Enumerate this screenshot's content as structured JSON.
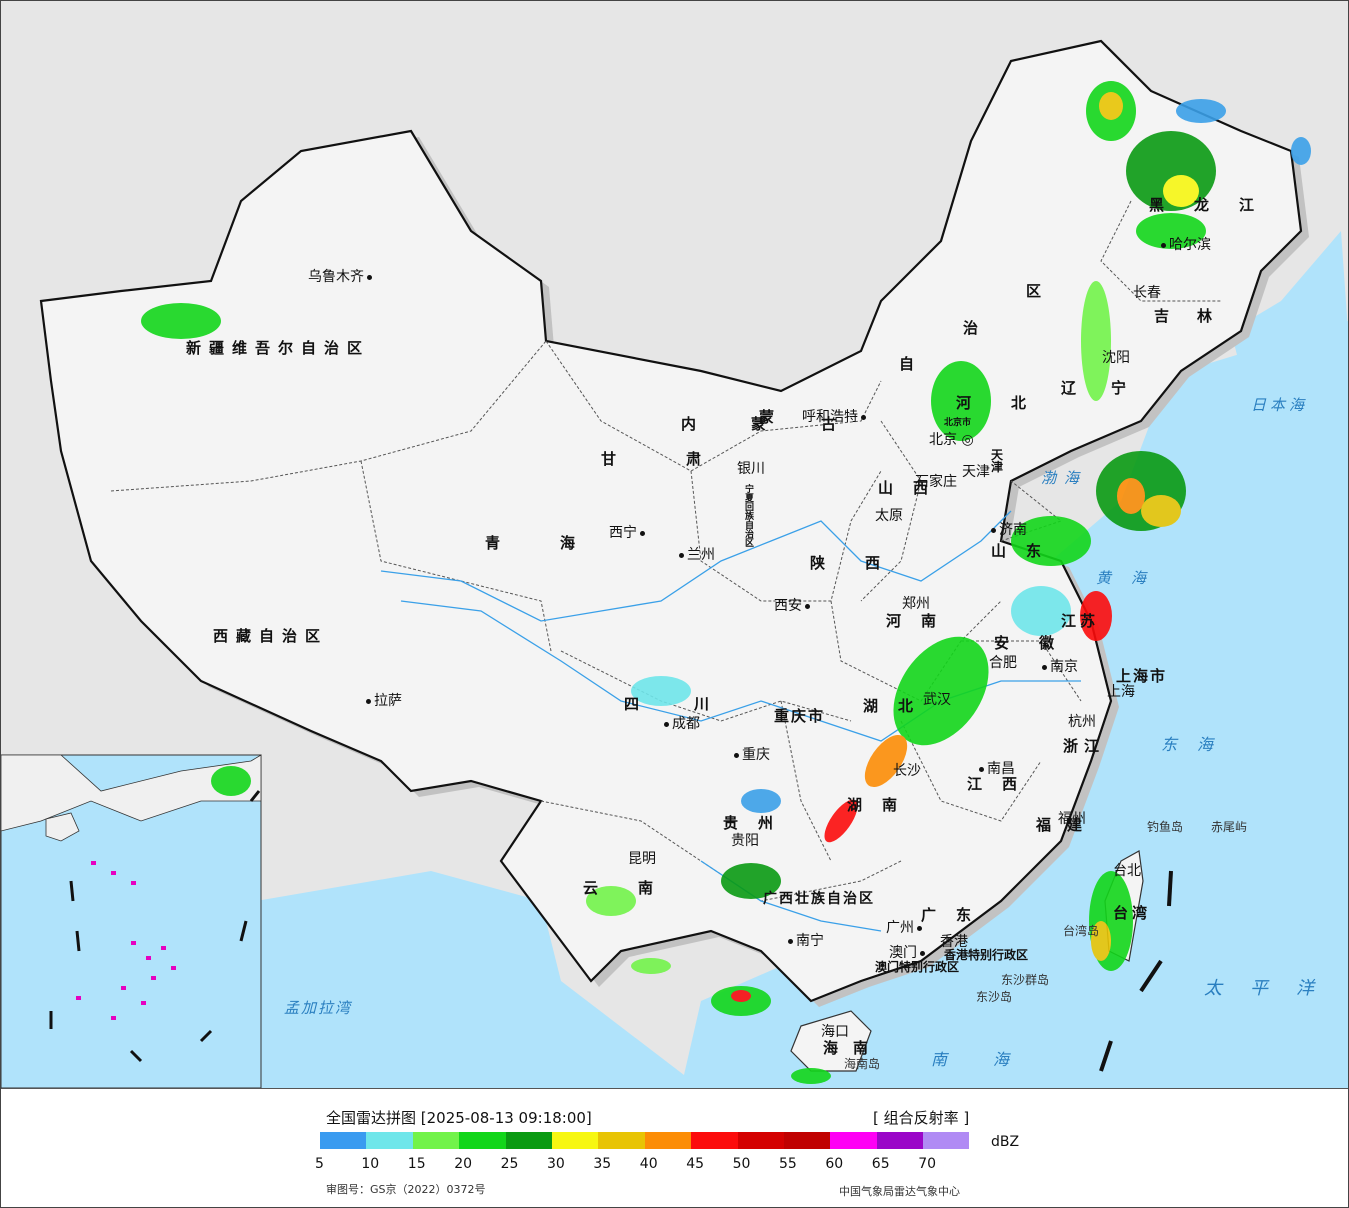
{
  "legend": {
    "title": "全国雷达拼图 [2025-08-13 09:18:00]",
    "product": "[ 组合反射率 ]",
    "unit": "dBZ",
    "review_number": "审图号：GS京（2022）0372号",
    "source": "中国气象局雷达气象中心",
    "colors": [
      "#3a9bf0",
      "#6fe6ea",
      "#72f34a",
      "#12d61a",
      "#0a9a12",
      "#f7f712",
      "#e8c404",
      "#fc8d06",
      "#fc0c0c",
      "#d40101",
      "#c00101",
      "#ff00f5",
      "#9a06c8",
      "#b08af4"
    ],
    "ticks": [
      "5",
      "10",
      "15",
      "20",
      "25",
      "30",
      "35",
      "40",
      "45",
      "50",
      "55",
      "60",
      "65",
      "70"
    ]
  },
  "cities": [
    {
      "name": "乌鲁木齐",
      "dot": "after"
    },
    {
      "name": "拉萨",
      "dot": "before"
    },
    {
      "name": "西宁",
      "dot": "after"
    },
    {
      "name": "兰州",
      "dot": "before"
    },
    {
      "name": "银川",
      "dot": "none"
    },
    {
      "name": "呼和浩特",
      "dot": "after"
    },
    {
      "name": "北京",
      "dot": "none"
    },
    {
      "name": "天津",
      "dot": "none"
    },
    {
      "name": "石家庄",
      "dot": "none"
    },
    {
      "name": "太原",
      "dot": "none"
    },
    {
      "name": "济南",
      "dot": "before"
    },
    {
      "name": "郑州",
      "dot": "none"
    },
    {
      "name": "西安",
      "dot": "after"
    },
    {
      "name": "成都",
      "dot": "before"
    },
    {
      "name": "重庆",
      "dot": "before"
    },
    {
      "name": "贵阳",
      "dot": "none"
    },
    {
      "name": "昆明",
      "dot": "none"
    },
    {
      "name": "南宁",
      "dot": "before"
    },
    {
      "name": "广州",
      "dot": "after"
    },
    {
      "name": "澳门",
      "dot": "after"
    },
    {
      "name": "香港",
      "dot": "none"
    },
    {
      "name": "海口",
      "dot": "none"
    },
    {
      "name": "长沙",
      "dot": "none"
    },
    {
      "name": "武汉",
      "dot": "none"
    },
    {
      "name": "南昌",
      "dot": "before"
    },
    {
      "name": "合肥",
      "dot": "none"
    },
    {
      "name": "南京",
      "dot": "before"
    },
    {
      "name": "上海",
      "dot": "none"
    },
    {
      "name": "杭州",
      "dot": "none"
    },
    {
      "name": "福州",
      "dot": "none"
    },
    {
      "name": "台北",
      "dot": "none"
    },
    {
      "name": "沈阳",
      "dot": "none"
    },
    {
      "name": "长春",
      "dot": "none"
    },
    {
      "name": "哈尔滨",
      "dot": "before"
    }
  ],
  "provinces": [
    "新疆维吾尔自治区",
    "西藏自治区",
    "青海",
    "甘肃",
    "内蒙古",
    "四川",
    "云南",
    "黑龙江",
    "吉林",
    "辽宁",
    "河北",
    "山西",
    "陕西",
    "河南",
    "山东",
    "江苏",
    "安徽",
    "湖北",
    "湖南",
    "江西",
    "浙江",
    "福建",
    "贵州",
    "广西壮族自治区",
    "广东",
    "海南",
    "台湾",
    "重庆市",
    "上海市",
    "宁夏回族自治区",
    "香港特别行政区",
    "澳门特别行政区",
    "北京市",
    "天津",
    "自",
    "治",
    "区",
    "蒙"
  ],
  "seas": [
    "日本海",
    "渤海",
    "黄海",
    "东海",
    "太平洋",
    "南海",
    "孟加拉湾"
  ],
  "islands": [
    "钓鱼岛",
    "赤尾屿",
    "东沙群岛",
    "东沙岛",
    "台湾岛",
    "海南岛"
  ]
}
